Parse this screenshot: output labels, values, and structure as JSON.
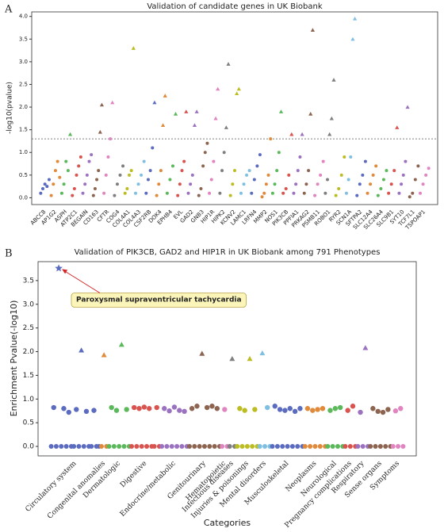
{
  "chart_data": [
    {
      "type": "strip",
      "panel": "A",
      "title": "Validation of candidate genes in UK Biobank",
      "y_label": "-log10(pvalue)",
      "categories": [
        "ABCC8",
        "AP1G2",
        "ASPH",
        "ATP2C1",
        "BEGAIN",
        "CD163",
        "CFTR",
        "COG4",
        "COL4A1",
        "COL4A3",
        "CSF2RB",
        "DOK4",
        "EPHB4",
        "EVL",
        "GAD2",
        "GNB3",
        "HIP1R",
        "HIPK2",
        "KCNV2",
        "LAMC1",
        "LRFN4",
        "MMP2",
        "NOS1",
        "PIK3CB",
        "PPFIA1",
        "PRKAG2",
        "PSMB11",
        "ROBO1",
        "RYR2",
        "SCN1A",
        "SFTPA2",
        "SLC12A4",
        "SLC26A4",
        "SLC9B1",
        "SYT10",
        "TCF7L1",
        "TSPOAP1"
      ],
      "values": [
        [
          0.1,
          0.2,
          0.3,
          0.25,
          0.4
        ],
        [
          0.05,
          0.3,
          0.6,
          0.8,
          0.45
        ],
        [
          0.1,
          0.3,
          0.8,
          0.6,
          1.4
        ],
        [
          0.05,
          0.2,
          0.5,
          0.7,
          0.9
        ],
        [
          0.1,
          0.3,
          0.5,
          0.8,
          0.95
        ],
        [
          0.05,
          0.2,
          0.4,
          0.6,
          1.45,
          2.05
        ],
        [
          0.1,
          0.5,
          0.9,
          1.3,
          2.1
        ],
        [
          0.05,
          0.3,
          0.5,
          0.7
        ],
        [
          0.1,
          0.2,
          0.5,
          0.6,
          3.3
        ],
        [
          0.1,
          0.3,
          0.5,
          0.8
        ],
        [
          0.1,
          0.4,
          0.6,
          1.1,
          2.1
        ],
        [
          0.05,
          0.3,
          0.6,
          1.6,
          2.25
        ],
        [
          0.1,
          0.4,
          0.7,
          1.85
        ],
        [
          0.05,
          0.3,
          0.6,
          0.8,
          1.9
        ],
        [
          0.1,
          0.3,
          0.5,
          1.6,
          1.9
        ],
        [
          0.05,
          0.2,
          0.7,
          1.0,
          1.2
        ],
        [
          0.1,
          0.4,
          0.8,
          1.75,
          2.4
        ],
        [
          0.1,
          0.6,
          1.0,
          1.55,
          2.95
        ],
        [
          0.05,
          0.3,
          0.6,
          2.3,
          2.4
        ],
        [
          0.1,
          0.3,
          0.5,
          0.6
        ],
        [
          0.1,
          0.4,
          0.7,
          0.95
        ],
        [
          0.02,
          0.1,
          0.3,
          0.5,
          1.3
        ],
        [
          0.1,
          0.3,
          0.6,
          1.0,
          1.9
        ],
        [
          0.1,
          0.2,
          0.5,
          1.4
        ],
        [
          0.1,
          0.3,
          0.6,
          0.9,
          1.4
        ],
        [
          0.1,
          0.3,
          0.6,
          1.85,
          3.7
        ],
        [
          0.05,
          0.3,
          0.5,
          0.8
        ],
        [
          0.1,
          0.4,
          1.4,
          1.75,
          2.6
        ],
        [
          0.05,
          0.2,
          0.5,
          0.9
        ],
        [
          0.1,
          0.4,
          0.9,
          3.5,
          3.95
        ],
        [
          0.05,
          0.3,
          0.5,
          0.8
        ],
        [
          0.1,
          0.3,
          0.5,
          0.7
        ],
        [
          0.05,
          0.2,
          0.4,
          0.6
        ],
        [
          0.1,
          0.3,
          0.6,
          1.55
        ],
        [
          0.1,
          0.3,
          0.5,
          0.8,
          2.0
        ],
        [
          0.02,
          0.1,
          0.4,
          0.7
        ],
        [
          0.1,
          0.3,
          0.5,
          0.65
        ]
      ],
      "colors": [
        "#5b6bbf",
        "#e08a3c",
        "#5bb85b",
        "#d9534f",
        "#9b72c0",
        "#8c6450",
        "#e085c0",
        "#7f7f7f",
        "#bcbd22",
        "#7fbfe0"
      ],
      "threshold": 1.3,
      "ylim": [
        -0.15,
        4.1
      ],
      "yticks": [
        {
          "value": 0,
          "label": "0.0"
        },
        0.5,
        {
          "value": 1,
          "label": "1.0"
        },
        1.5,
        {
          "value": 2,
          "label": "2.0"
        },
        2.5,
        {
          "value": 3,
          "label": "3.0"
        },
        3.5,
        {
          "value": 4,
          "label": "4.0"
        }
      ]
    },
    {
      "type": "manhattan",
      "panel": "B",
      "title": "Validation of PIK3CB, GAD2 and HIP1R in UK Biobank among 791 Phenotypes",
      "y_label": "Enrichment Pvalue(-log10)",
      "x_label": "Categories",
      "annotation": "Paroxysmal supraventricular tachycardia",
      "categories": [
        "Circulatory system",
        "Congenital anomalies",
        "Dermatologic",
        "Digestive",
        "Endocrine/metabolic",
        "Genitourinary",
        "Hematopoietic",
        "Infectious diseases",
        "Injuries & poisonings",
        "Mental disorders",
        "Musculoskeletal",
        "Neoplasms",
        "Neurological",
        "Pregnancy complications",
        "Respiratory",
        "Sense organs",
        "Symptoms"
      ],
      "colors": [
        "#5b6bbf",
        "#e08a3c",
        "#5bb85b",
        "#d9534f",
        "#9b72c0",
        "#8c6450",
        "#e085c0",
        "#7f7f7f",
        "#bcbd22",
        "#7fbfe0",
        "#5b6bbf",
        "#e08a3c",
        "#5bb85b",
        "#d9534f",
        "#9b72c0",
        "#8c6450",
        "#e085c0"
      ],
      "values": [
        [
          0,
          0.82,
          0,
          3.76,
          0,
          0.8,
          0,
          0.72,
          0,
          0,
          0.78,
          0,
          2.03,
          0,
          0.74,
          0,
          0,
          0.76,
          0,
          0
        ],
        [
          0,
          1.93,
          0
        ],
        [
          0,
          0.82,
          0,
          0.76,
          0,
          2.15,
          0,
          0.78,
          0
        ],
        [
          0,
          0.82,
          0,
          0.8,
          0,
          0.83,
          0,
          0.8,
          0,
          0,
          0.82,
          0
        ],
        [
          0,
          0.8,
          0,
          0.75,
          0,
          0.83,
          0,
          0.76,
          0,
          0.74,
          0
        ],
        [
          0,
          0.8,
          0,
          0.85,
          0,
          1.96,
          0,
          0.82,
          0,
          0.85,
          0,
          0.8,
          0
        ],
        [
          0,
          0.78,
          0
        ],
        [
          0,
          1.85,
          0
        ],
        [
          0,
          0.8,
          0,
          0.76,
          0,
          1.85,
          0,
          0.78,
          0
        ],
        [
          0,
          1.97,
          0,
          0.82,
          0
        ],
        [
          0,
          0.85,
          0,
          0.78,
          0,
          0.76,
          0,
          0.8,
          0,
          0.74,
          0,
          0.8,
          0
        ],
        [
          0,
          0.8,
          0,
          0.76,
          0,
          0.78,
          0,
          0.8,
          0
        ],
        [
          0,
          0.76,
          0,
          0.8,
          0,
          0.82,
          0
        ],
        [
          0,
          0.76,
          0,
          0.85,
          0
        ],
        [
          0,
          0.72,
          0,
          2.08,
          0
        ],
        [
          0,
          0.8,
          0,
          0.74,
          0,
          0.72,
          0,
          0.78,
          0
        ],
        [
          0,
          0.75,
          0,
          0.8,
          0
        ]
      ],
      "ylim": [
        -0.2,
        3.9
      ],
      "yticks": [
        {
          "value": 0,
          "label": "0.0"
        },
        0.5,
        {
          "value": 1,
          "label": "1.0"
        },
        1.5,
        {
          "value": 2,
          "label": "2.0"
        },
        2.5,
        {
          "value": 3,
          "label": "3.0"
        },
        3.5
      ]
    }
  ]
}
